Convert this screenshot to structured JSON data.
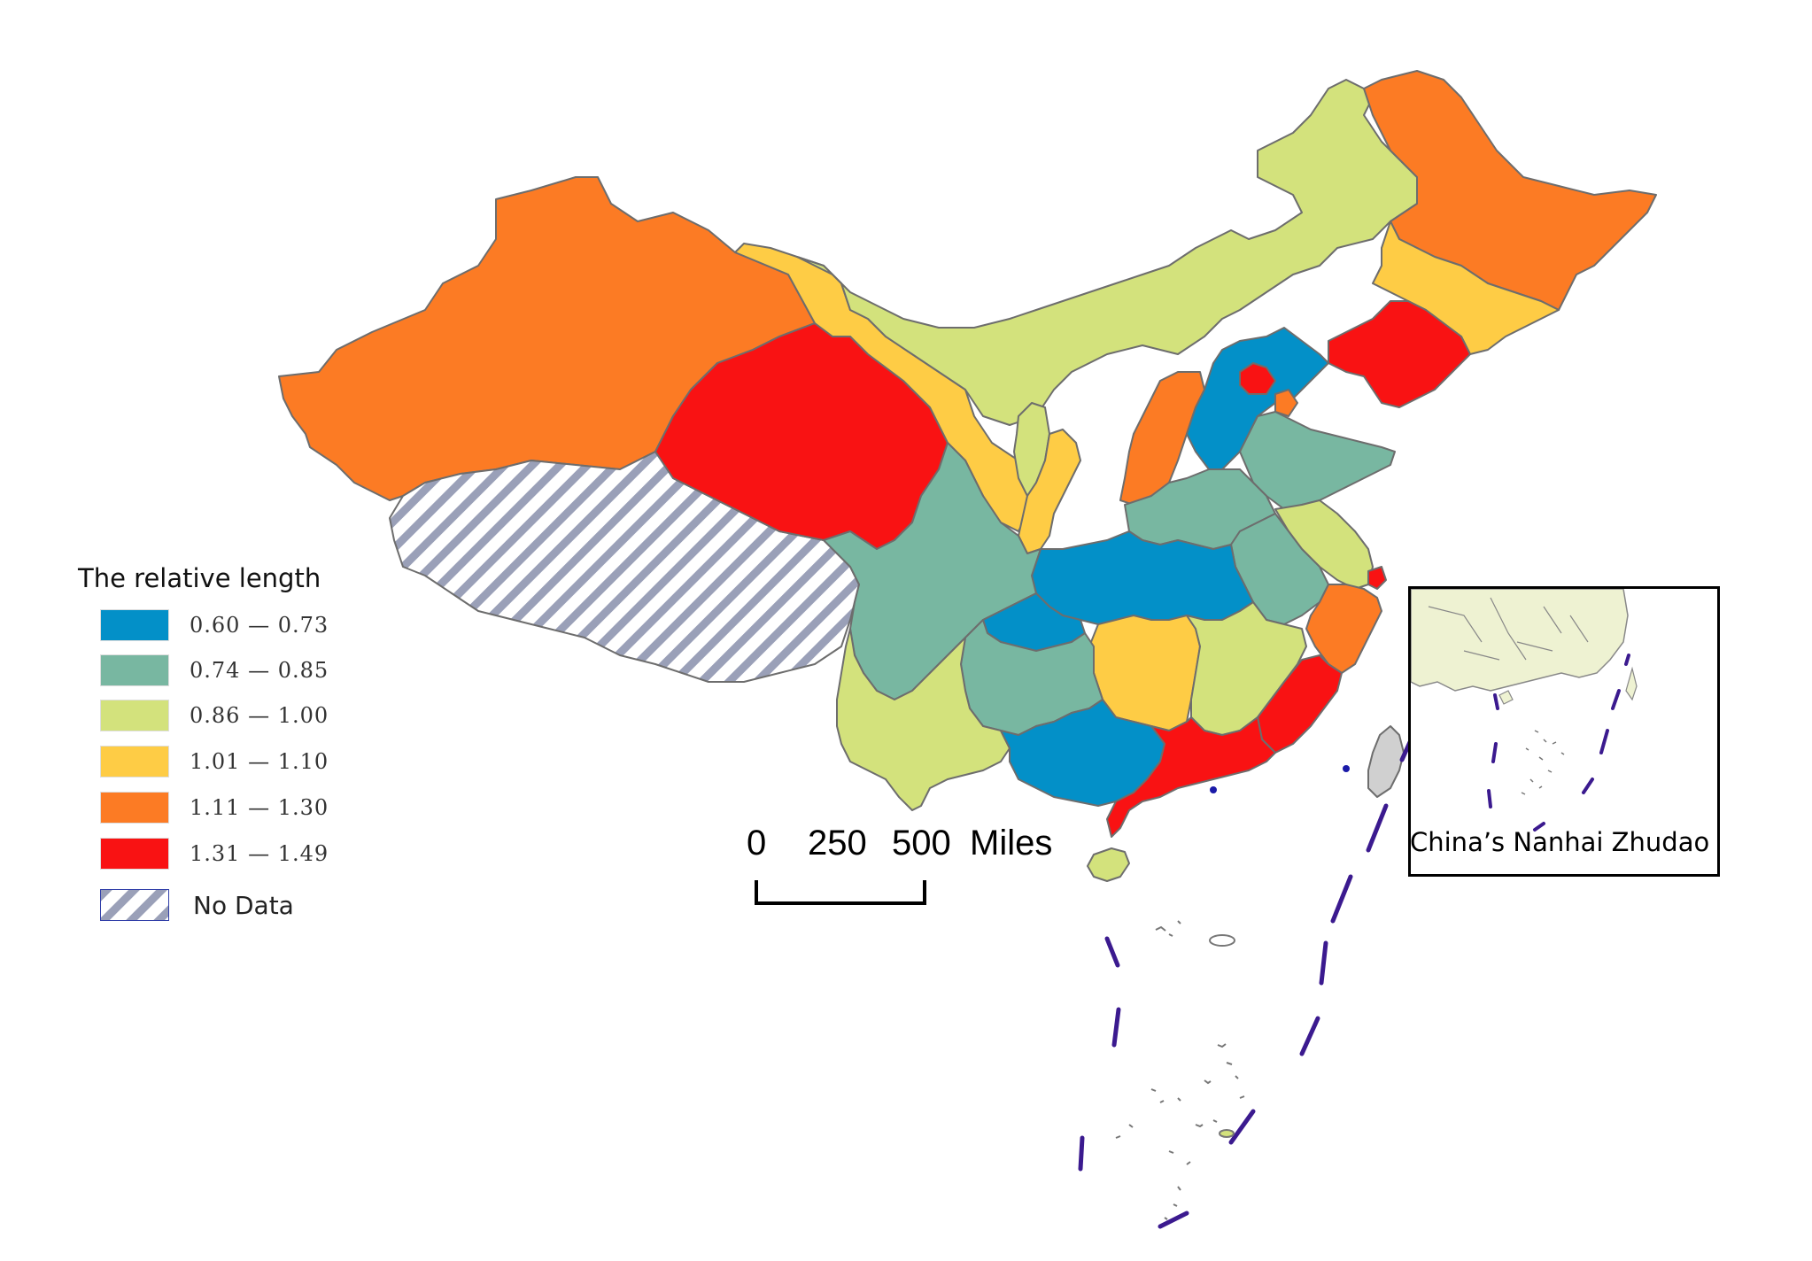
{
  "legend": {
    "title": "The relative length",
    "classes": [
      {
        "label": "0.60 — 0.73",
        "color": "#0390c8"
      },
      {
        "label": "0.74 — 0.85",
        "color": "#78b7a1"
      },
      {
        "label": "0.86 — 1.00",
        "color": "#d3e27c"
      },
      {
        "label": "1.01 — 1.10",
        "color": "#fecc45"
      },
      {
        "label": "1.11 — 1.30",
        "color": "#fc7b24"
      },
      {
        "label": "1.31 — 1.49",
        "color": "#f91213"
      }
    ],
    "no_data_label": "No Data",
    "no_data_color": "#9aa0b8"
  },
  "scale_bar": {
    "ticks": [
      "0",
      "250",
      "500"
    ],
    "unit": "Miles"
  },
  "inset": {
    "label": "China’s Nanhai Zhudao",
    "land_color": "#eef2d2"
  },
  "nine_dash_line_color": "#3b1a8f"
}
